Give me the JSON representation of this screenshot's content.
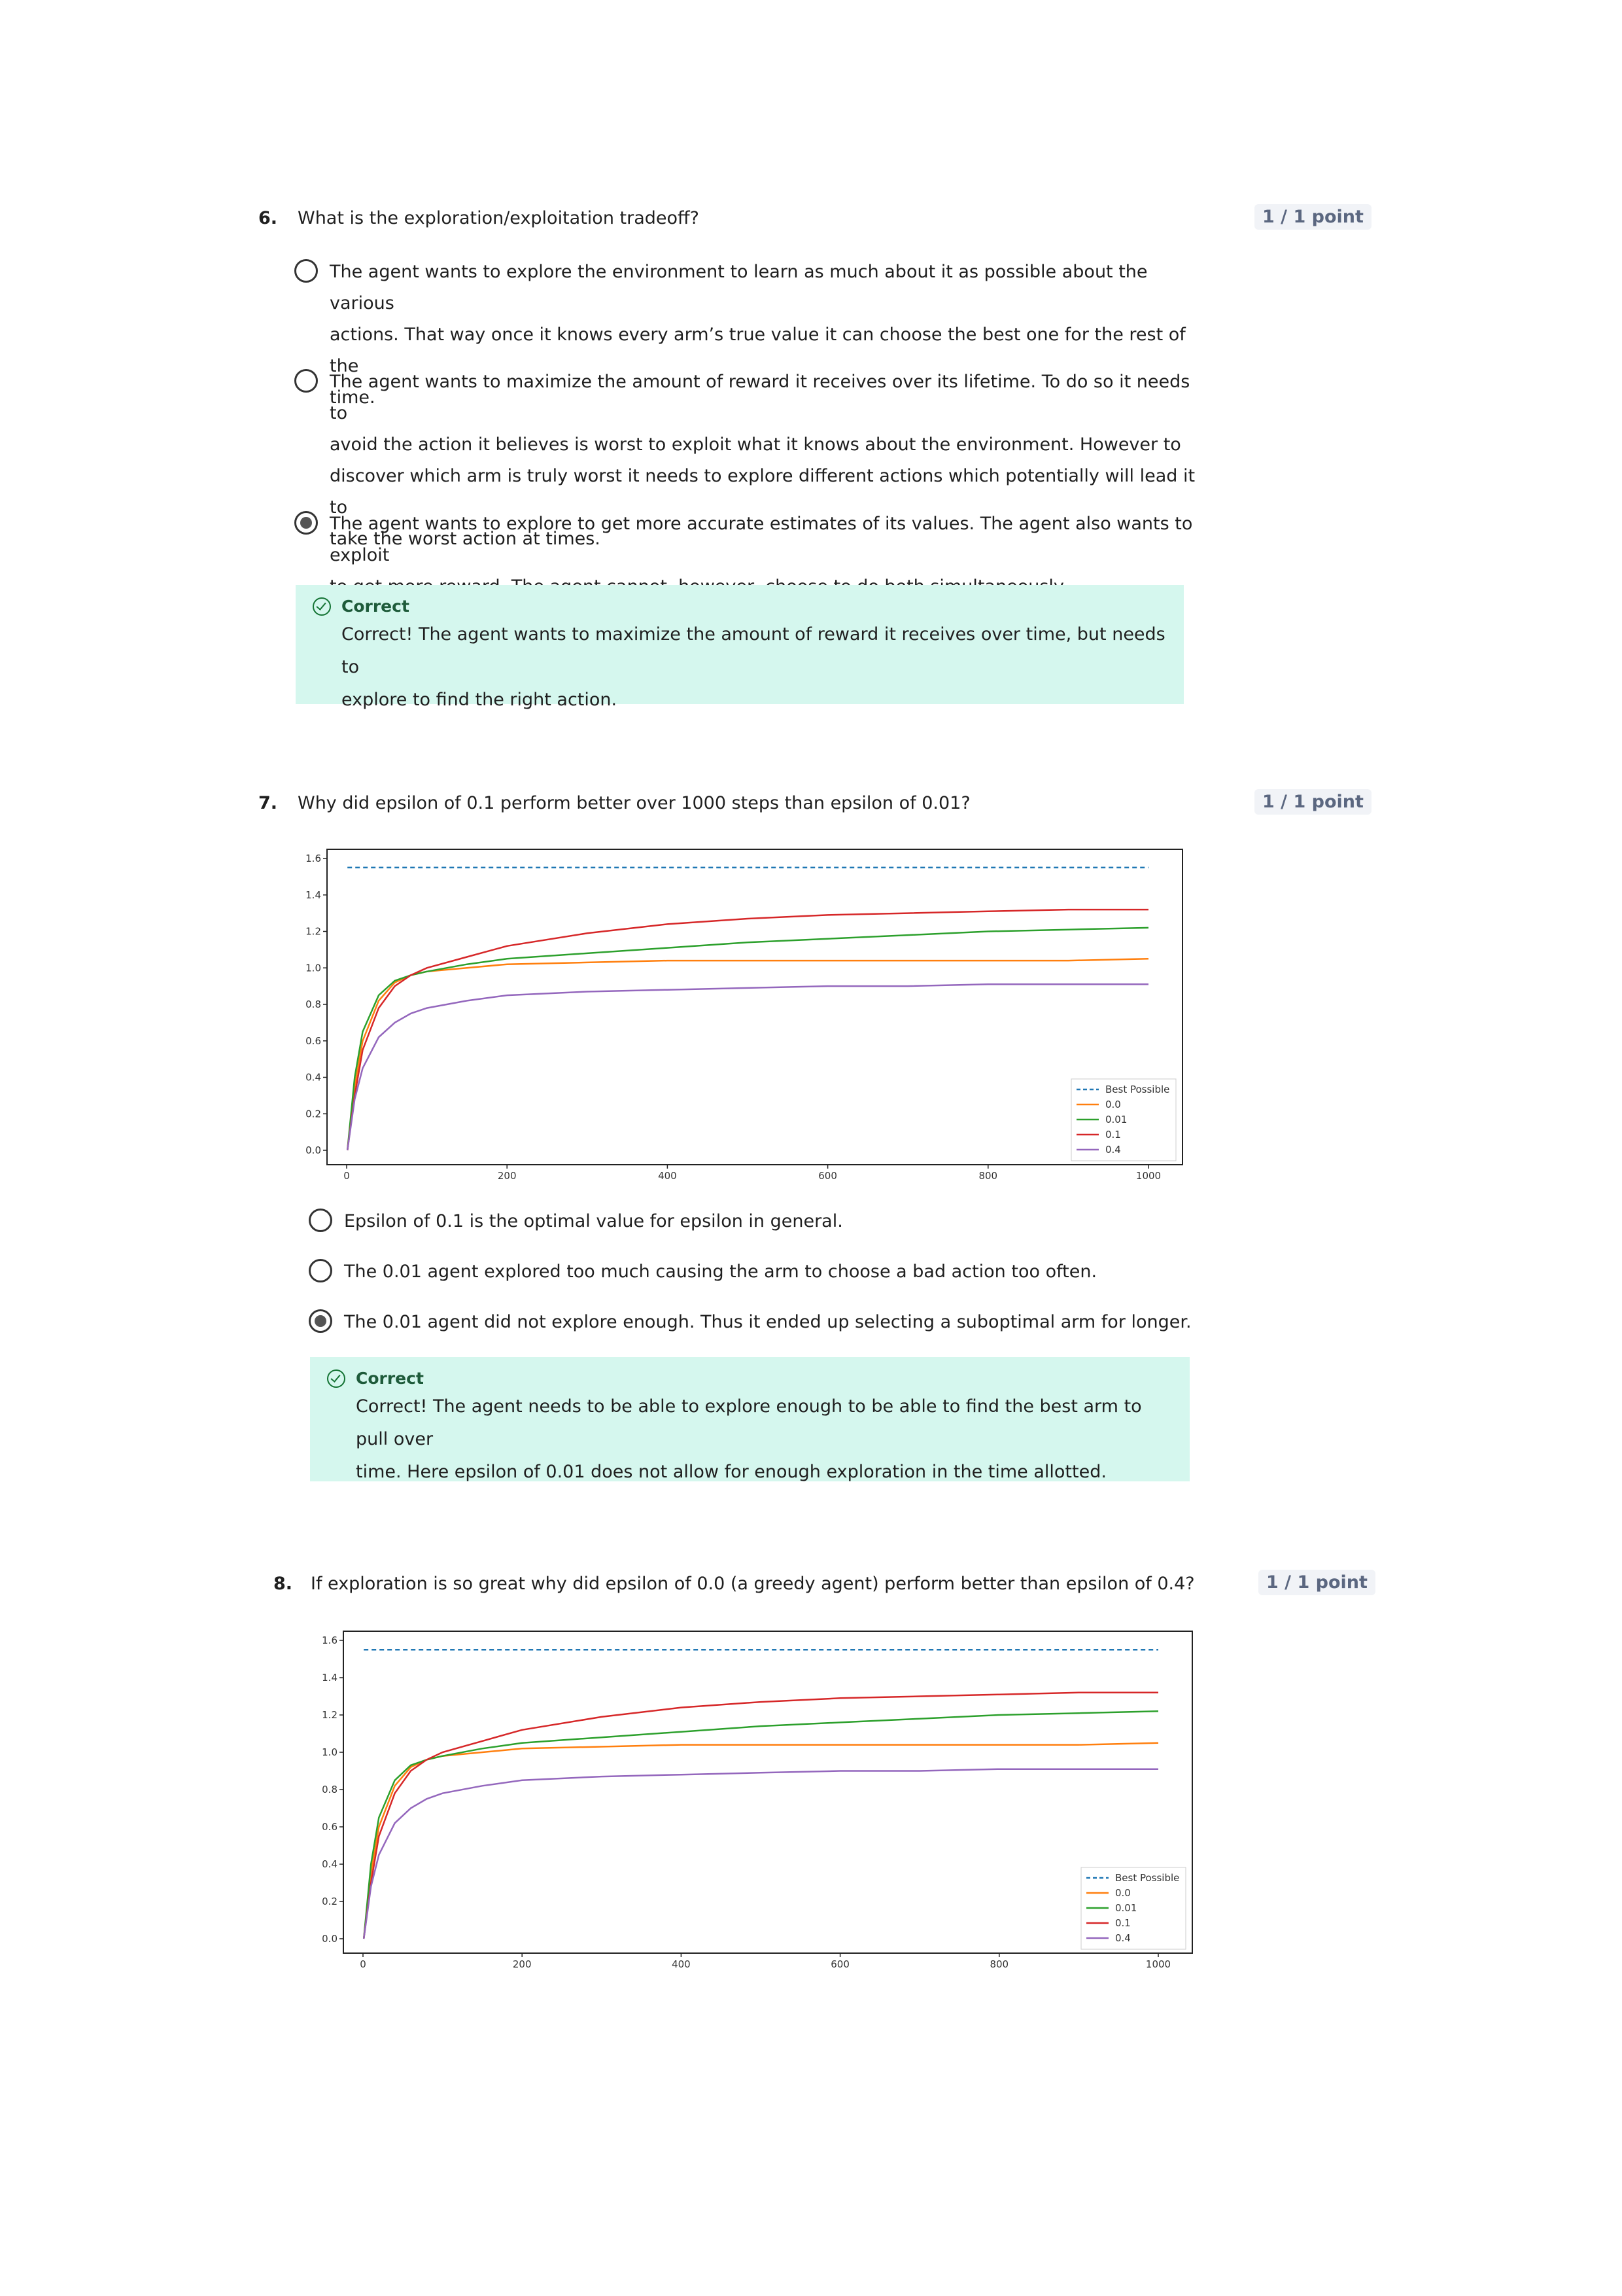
{
  "questions": [
    {
      "number": "6.",
      "text": "What is the exploration/exploitation tradeoff?",
      "points": "1 / 1 point",
      "options": [
        {
          "lines": [
            "The agent wants to explore the environment to learn as much about it as possible about the various",
            "actions. That way once it knows every arm’s true value it can choose the best one for the rest of the",
            "time."
          ],
          "selected": false
        },
        {
          "lines": [
            "The agent wants to maximize the amount of reward it receives over its lifetime. To do so it needs to",
            "avoid the action it believes is worst to exploit what it knows about the environment. However to",
            "discover which arm is truly worst it needs to explore different actions which potentially will lead it to",
            "take the worst action at times."
          ],
          "selected": false
        },
        {
          "lines": [
            "The agent wants to explore to get more accurate estimates of its values. The agent also wants to exploit",
            "to get more reward. The agent cannot, however, choose to do both simultaneously."
          ],
          "selected": true
        }
      ],
      "feedback": {
        "title": "Correct",
        "lines": [
          "Correct! The agent wants to maximize the amount of reward it receives over time, but needs to",
          "explore to find the right action."
        ]
      }
    },
    {
      "number": "7.",
      "text": "Why did epsilon of 0.1 perform better over 1000 steps than epsilon of 0.01?",
      "points": "1 / 1 point",
      "options": [
        {
          "lines": [
            "Epsilon of 0.1 is the optimal value for epsilon in general."
          ],
          "selected": false
        },
        {
          "lines": [
            "The 0.01 agent explored too much causing the arm to choose a bad action too often."
          ],
          "selected": false
        },
        {
          "lines": [
            "The 0.01 agent did not explore enough. Thus it ended up selecting a suboptimal arm for longer."
          ],
          "selected": true
        }
      ],
      "feedback": {
        "title": "Correct",
        "lines": [
          "Correct! The agent needs to be able to explore enough to be able to find the best arm to pull over",
          "time. Here epsilon of 0.01 does not allow for enough exploration in the time allotted."
        ]
      }
    },
    {
      "number": "8.",
      "text": "If exploration is so great why did epsilon of 0.0 (a greedy agent) perform better than epsilon of 0.4?",
      "points": "1 / 1 point"
    }
  ],
  "chart_data": [
    {
      "type": "line",
      "title": "",
      "xlabel": "",
      "ylabel": "",
      "xlim": [
        0,
        1000
      ],
      "ylim": [
        0.0,
        1.6
      ],
      "xticks": [
        "0",
        "200",
        "400",
        "600",
        "800",
        "1000"
      ],
      "yticks": [
        "0.0",
        "0.2",
        "0.4",
        "0.6",
        "0.8",
        "1.0",
        "1.2",
        "1.4",
        "1.6"
      ],
      "legend_position": "lower-right",
      "x": [
        1,
        10,
        20,
        40,
        60,
        80,
        100,
        150,
        200,
        300,
        400,
        500,
        600,
        700,
        800,
        900,
        1000
      ],
      "series": [
        {
          "name": "Best Possible",
          "color": "#1f77b4",
          "dashed": true,
          "values": [
            1.55,
            1.55,
            1.55,
            1.55,
            1.55,
            1.55,
            1.55,
            1.55,
            1.55,
            1.55,
            1.55,
            1.55,
            1.55,
            1.55,
            1.55,
            1.55,
            1.55
          ]
        },
        {
          "name": "0.0",
          "color": "#ff7f0e",
          "values": [
            0.0,
            0.35,
            0.6,
            0.82,
            0.92,
            0.96,
            0.98,
            1.0,
            1.02,
            1.03,
            1.04,
            1.04,
            1.04,
            1.04,
            1.04,
            1.04,
            1.05
          ]
        },
        {
          "name": "0.01",
          "color": "#2ca02c",
          "values": [
            0.0,
            0.4,
            0.65,
            0.85,
            0.93,
            0.96,
            0.98,
            1.02,
            1.05,
            1.08,
            1.11,
            1.14,
            1.16,
            1.18,
            1.2,
            1.21,
            1.22
          ]
        },
        {
          "name": "0.1",
          "color": "#d62728",
          "values": [
            0.0,
            0.3,
            0.55,
            0.78,
            0.9,
            0.96,
            1.0,
            1.06,
            1.12,
            1.19,
            1.24,
            1.27,
            1.29,
            1.3,
            1.31,
            1.32,
            1.32
          ]
        },
        {
          "name": "0.4",
          "color": "#9467bd",
          "values": [
            0.0,
            0.28,
            0.45,
            0.62,
            0.7,
            0.75,
            0.78,
            0.82,
            0.85,
            0.87,
            0.88,
            0.89,
            0.9,
            0.9,
            0.91,
            0.91,
            0.91
          ]
        }
      ]
    },
    {
      "type": "line",
      "title": "",
      "xlabel": "",
      "ylabel": "",
      "xlim": [
        0,
        1000
      ],
      "ylim": [
        0.0,
        1.6
      ],
      "xticks": [
        "0",
        "200",
        "400",
        "600",
        "800",
        "1000"
      ],
      "yticks": [
        "0.0",
        "0.2",
        "0.4",
        "0.6",
        "0.8",
        "1.0",
        "1.2",
        "1.4",
        "1.6"
      ],
      "legend_position": "lower-right",
      "x": [
        1,
        10,
        20,
        40,
        60,
        80,
        100,
        150,
        200,
        300,
        400,
        500,
        600,
        700,
        800,
        900,
        1000
      ],
      "series": [
        {
          "name": "Best Possible",
          "color": "#1f77b4",
          "dashed": true,
          "values": [
            1.55,
            1.55,
            1.55,
            1.55,
            1.55,
            1.55,
            1.55,
            1.55,
            1.55,
            1.55,
            1.55,
            1.55,
            1.55,
            1.55,
            1.55,
            1.55,
            1.55
          ]
        },
        {
          "name": "0.0",
          "color": "#ff7f0e",
          "values": [
            0.0,
            0.35,
            0.6,
            0.82,
            0.92,
            0.96,
            0.98,
            1.0,
            1.02,
            1.03,
            1.04,
            1.04,
            1.04,
            1.04,
            1.04,
            1.04,
            1.05
          ]
        },
        {
          "name": "0.01",
          "color": "#2ca02c",
          "values": [
            0.0,
            0.4,
            0.65,
            0.85,
            0.93,
            0.96,
            0.98,
            1.02,
            1.05,
            1.08,
            1.11,
            1.14,
            1.16,
            1.18,
            1.2,
            1.21,
            1.22
          ]
        },
        {
          "name": "0.1",
          "color": "#d62728",
          "values": [
            0.0,
            0.3,
            0.55,
            0.78,
            0.9,
            0.96,
            1.0,
            1.06,
            1.12,
            1.19,
            1.24,
            1.27,
            1.29,
            1.3,
            1.31,
            1.32,
            1.32
          ]
        },
        {
          "name": "0.4",
          "color": "#9467bd",
          "values": [
            0.0,
            0.28,
            0.45,
            0.62,
            0.7,
            0.75,
            0.78,
            0.82,
            0.85,
            0.87,
            0.88,
            0.89,
            0.9,
            0.9,
            0.91,
            0.91,
            0.91
          ]
        }
      ]
    }
  ]
}
